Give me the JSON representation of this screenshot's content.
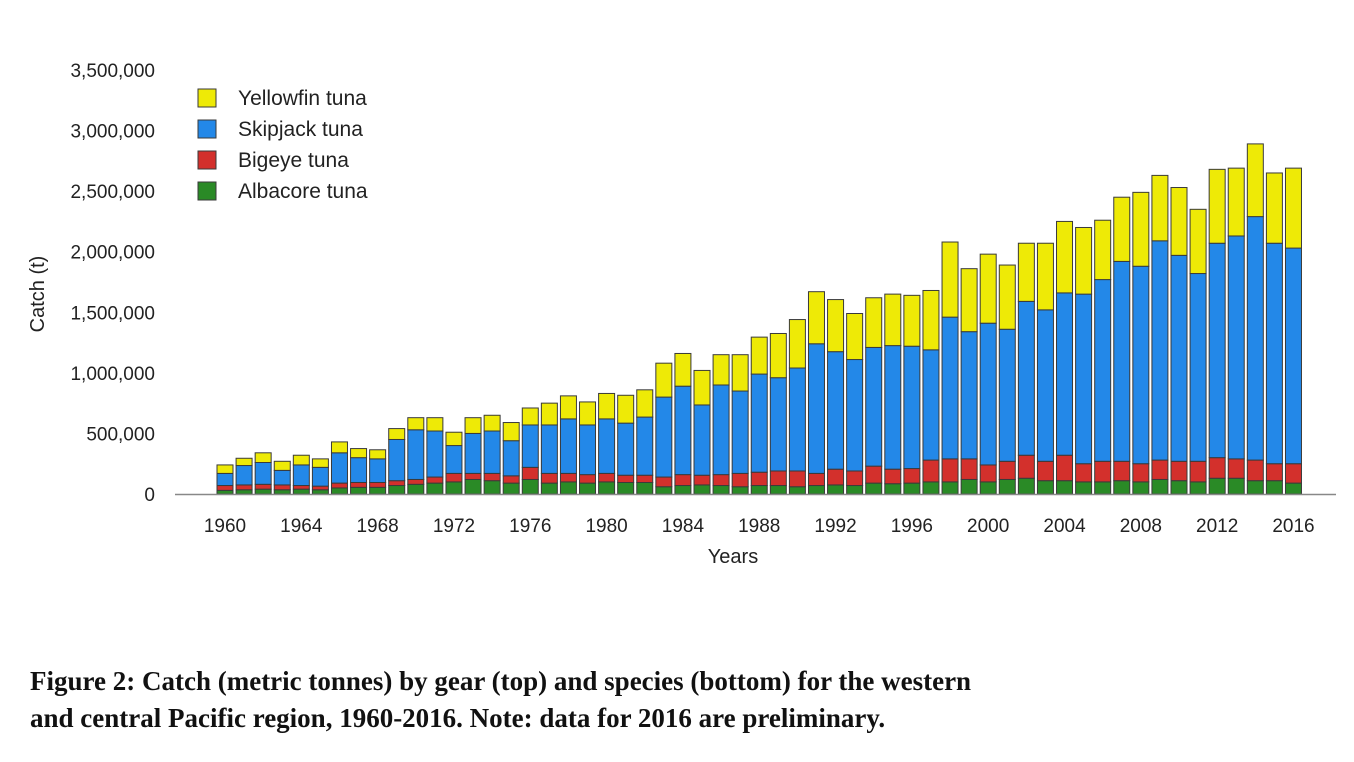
{
  "colors": {
    "albacore": "#2a8a26",
    "bigeye": "#d3302c",
    "skipjack": "#2388e8",
    "yellowfin": "#eeea06",
    "bar_outline": "#3a3a3a",
    "axis": "#888888"
  },
  "chart_data": {
    "type": "bar",
    "stacked": true,
    "xlabel": "Years",
    "ylabel": "Catch (t)",
    "ylim": [
      0,
      3500000
    ],
    "yticks": [
      0,
      500000,
      1000000,
      1500000,
      2000000,
      2500000,
      3000000,
      3500000
    ],
    "ytick_labels": [
      "0",
      "500,000",
      "1,000,000",
      "1,500,000",
      "2,000,000",
      "2,500,000",
      "3,000,000",
      "3,500,000"
    ],
    "xtick_labels": [
      "1960",
      "1964",
      "1968",
      "1972",
      "1976",
      "1980",
      "1984",
      "1988",
      "1992",
      "1996",
      "2000",
      "2004",
      "2008",
      "2012",
      "2016"
    ],
    "legend_position": "top-left",
    "categories": [
      1960,
      1961,
      1962,
      1963,
      1964,
      1965,
      1966,
      1967,
      1968,
      1969,
      1970,
      1971,
      1972,
      1973,
      1974,
      1975,
      1976,
      1977,
      1978,
      1979,
      1980,
      1981,
      1982,
      1983,
      1984,
      1985,
      1986,
      1987,
      1988,
      1989,
      1990,
      1991,
      1992,
      1993,
      1994,
      1995,
      1996,
      1997,
      1998,
      1999,
      2000,
      2001,
      2002,
      2003,
      2004,
      2005,
      2006,
      2007,
      2008,
      2009,
      2010,
      2011,
      2012,
      2013,
      2014,
      2015,
      2016
    ],
    "series": [
      {
        "name": "Albacore tuna",
        "key": "albacore",
        "values": [
          30000,
          35000,
          40000,
          35000,
          40000,
          35000,
          50000,
          55000,
          55000,
          70000,
          80000,
          90000,
          100000,
          120000,
          110000,
          90000,
          120000,
          90000,
          100000,
          90000,
          100000,
          95000,
          95000,
          60000,
          70000,
          75000,
          70000,
          60000,
          70000,
          70000,
          60000,
          70000,
          75000,
          70000,
          90000,
          85000,
          90000,
          100000,
          100000,
          120000,
          100000,
          120000,
          130000,
          110000,
          110000,
          100000,
          100000,
          110000,
          100000,
          120000,
          110000,
          100000,
          130000,
          130000,
          110000,
          110000,
          90000
        ]
      },
      {
        "name": "Bigeye tuna",
        "key": "bigeye",
        "values": [
          40000,
          40000,
          40000,
          40000,
          30000,
          30000,
          40000,
          40000,
          40000,
          40000,
          40000,
          50000,
          70000,
          50000,
          60000,
          60000,
          100000,
          80000,
          70000,
          70000,
          70000,
          60000,
          60000,
          80000,
          90000,
          80000,
          90000,
          110000,
          110000,
          120000,
          130000,
          100000,
          130000,
          120000,
          140000,
          120000,
          120000,
          180000,
          190000,
          170000,
          140000,
          150000,
          190000,
          160000,
          210000,
          150000,
          170000,
          160000,
          150000,
          160000,
          160000,
          170000,
          170000,
          160000,
          170000,
          140000,
          160000
        ]
      },
      {
        "name": "Skipjack tuna",
        "key": "skipjack",
        "values": [
          100000,
          160000,
          180000,
          120000,
          170000,
          155000,
          250000,
          205000,
          195000,
          340000,
          410000,
          380000,
          230000,
          330000,
          350000,
          290000,
          350000,
          400000,
          450000,
          410000,
          450000,
          430000,
          480000,
          660000,
          730000,
          580000,
          740000,
          680000,
          810000,
          770000,
          850000,
          1070000,
          970000,
          920000,
          980000,
          1020000,
          1010000,
          910000,
          1170000,
          1050000,
          1170000,
          1090000,
          1270000,
          1250000,
          1340000,
          1400000,
          1500000,
          1650000,
          1630000,
          1810000,
          1700000,
          1550000,
          1770000,
          1840000,
          2010000,
          1820000,
          1780000
        ]
      },
      {
        "name": "Yellowfin tuna",
        "key": "yellowfin",
        "values": [
          70000,
          60000,
          80000,
          75000,
          80000,
          70000,
          90000,
          75000,
          75000,
          90000,
          100000,
          110000,
          110000,
          130000,
          130000,
          150000,
          140000,
          180000,
          190000,
          190000,
          210000,
          230000,
          225000,
          280000,
          270000,
          285000,
          250000,
          300000,
          305000,
          365000,
          400000,
          430000,
          430000,
          380000,
          410000,
          425000,
          420000,
          490000,
          620000,
          520000,
          570000,
          530000,
          480000,
          550000,
          590000,
          550000,
          490000,
          530000,
          610000,
          540000,
          560000,
          530000,
          610000,
          560000,
          600000,
          580000,
          660000
        ]
      }
    ]
  },
  "caption": {
    "line1": "Figure 2: Catch (metric tonnes) by gear (top) and species (bottom) for the western",
    "line2": "and central Pacific region, 1960-2016. Note: data for 2016 are preliminary."
  }
}
